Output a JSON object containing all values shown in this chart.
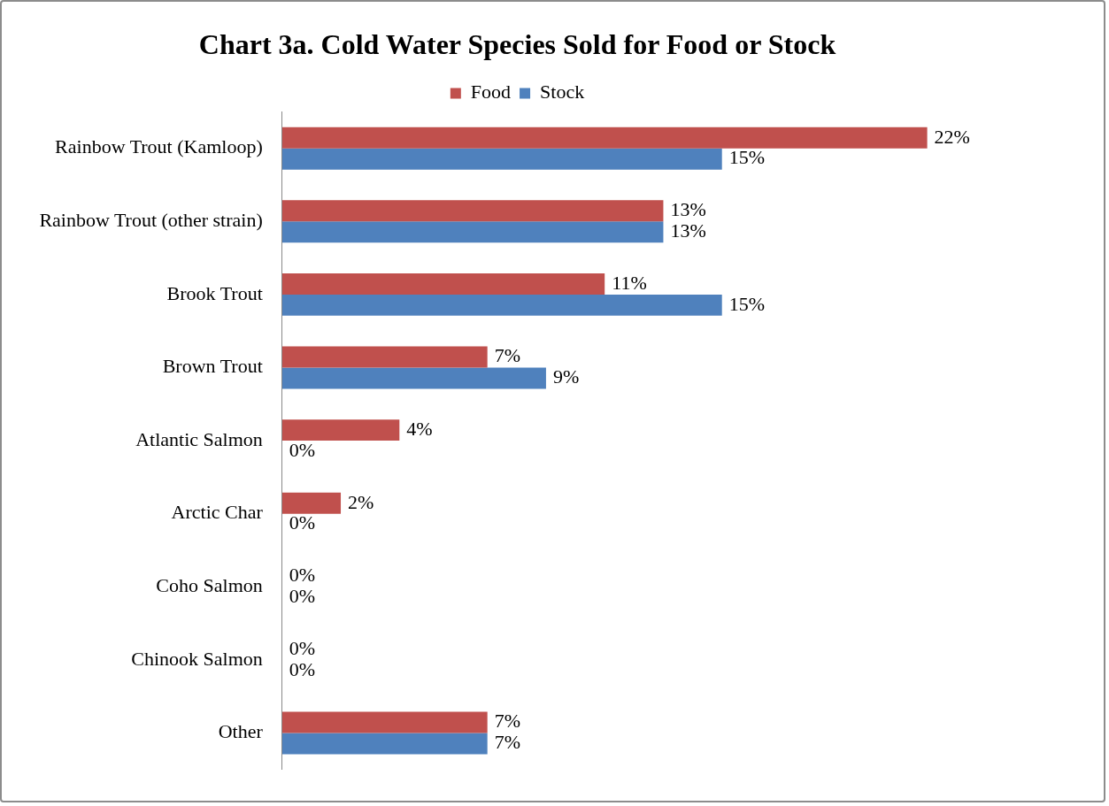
{
  "chart_data": {
    "type": "bar",
    "orientation": "horizontal",
    "title": "Chart 3a. Cold Water Species Sold for Food or Stock",
    "categories": [
      "Rainbow Trout (Kamloop)",
      "Rainbow Trout (other strain)",
      "Brook Trout",
      "Brown Trout",
      "Atlantic Salmon",
      "Arctic Char",
      "Coho Salmon",
      "Chinook Salmon",
      "Other"
    ],
    "series": [
      {
        "name": "Food",
        "color": "#c0504d",
        "values": [
          22,
          13,
          11,
          7,
          4,
          2,
          0,
          0,
          7
        ],
        "value_labels": [
          "22%",
          "13%",
          "11%",
          "7%",
          "4%",
          "2%",
          "0%",
          "0%",
          "7%"
        ]
      },
      {
        "name": "Stock",
        "color": "#4f81bd",
        "values": [
          15,
          13,
          15,
          9,
          0,
          0,
          0,
          0,
          7
        ],
        "value_labels": [
          "15%",
          "13%",
          "15%",
          "9%",
          "0%",
          "0%",
          "0%",
          "0%",
          "7%"
        ]
      }
    ],
    "legend": "top",
    "grid": false,
    "tick_labels": "y"
  }
}
